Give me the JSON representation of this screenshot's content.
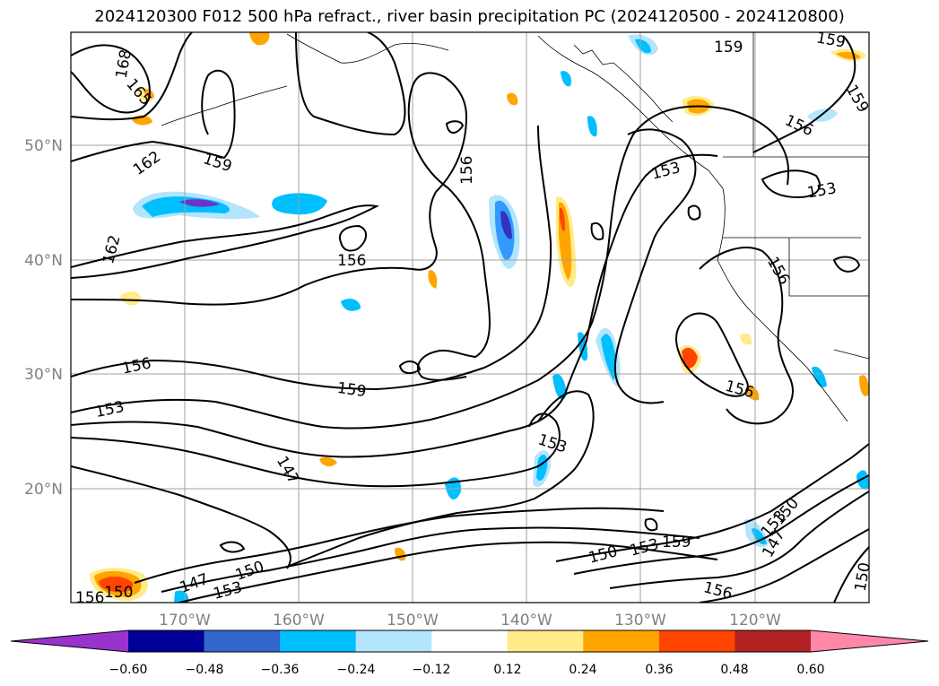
{
  "title": "2024120300 F012 500 hPa refract., river basin precipitation PC (2024120500 - 2024120800)",
  "lat_labels": [
    "50°N",
    "40°N",
    "30°N",
    "20°N"
  ],
  "lon_labels": [
    "170°W",
    "160°W",
    "150°W",
    "140°W",
    "130°W",
    "120°W"
  ],
  "contour_labels": [
    "168",
    "165",
    "162",
    "159",
    "162",
    "156",
    "156",
    "156",
    "159",
    "153",
    "147",
    "153",
    "156",
    "159",
    "156",
    "153",
    "153",
    "150",
    "147",
    "150",
    "153",
    "150",
    "153",
    "159",
    "156",
    "153",
    "150",
    "147",
    "156",
    "150",
    "159",
    "159",
    "156"
  ],
  "colorbar": {
    "ticks": [
      "−0.60",
      "−0.48",
      "−0.36",
      "−0.24",
      "−0.12",
      "0.12",
      "0.24",
      "0.36",
      "0.48",
      "0.60"
    ],
    "colors": [
      "#9933cc",
      "#000099",
      "#3366cc",
      "#00bfff",
      "#b3e5fc",
      "#ffffff",
      "#ffeb8a",
      "#ffa500",
      "#ff4500",
      "#b22222",
      "#ff88aa"
    ]
  }
}
